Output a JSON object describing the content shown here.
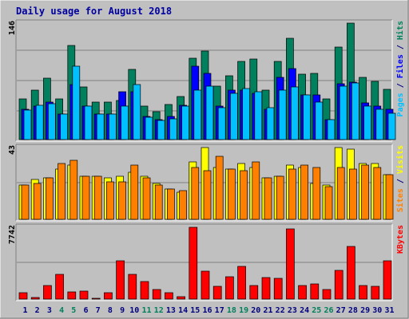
{
  "chart_data": {
    "title": "Daily usage for August 2018",
    "type": "bar",
    "categories": [
      "1",
      "2",
      "3",
      "4",
      "5",
      "6",
      "7",
      "8",
      "9",
      "10",
      "11",
      "12",
      "13",
      "14",
      "15",
      "16",
      "17",
      "18",
      "19",
      "20",
      "21",
      "22",
      "23",
      "24",
      "25",
      "26",
      "27",
      "28",
      "29",
      "30",
      "31"
    ],
    "weekend_days": [
      "4",
      "5",
      "11",
      "12",
      "18",
      "19",
      "25",
      "26"
    ],
    "colors": {
      "background": "#c0c0c0",
      "title": "#0000a0",
      "weekday_label": "#000080",
      "weekend_label": "#00805c",
      "hits": "#00805c",
      "files": "#0000ff",
      "pages": "#00c0ff",
      "visits": "#ffff00",
      "sites": "#ff8000",
      "kbytes": "#ff0000"
    },
    "panels": [
      {
        "id": "hits_files_pages",
        "ymax_label": "146",
        "legend": [
          {
            "text": "Pages",
            "color": "#00c0ff"
          },
          {
            "text": " / ",
            "color": "#000080"
          },
          {
            "text": "Files",
            "color": "#0000ff"
          },
          {
            "text": " / ",
            "color": "#000080"
          },
          {
            "text": "Hits",
            "color": "#00805c"
          }
        ],
        "series": [
          {
            "name": "Hits",
            "color": "#00805c",
            "values": [
              49,
              59,
              74,
              49,
              113,
              63,
              45,
              45,
              47,
              84,
              40,
              34,
              42,
              52,
              98,
              106,
              64,
              77,
              94,
              97,
              59,
              94,
              122,
              79,
              80,
              49,
              111,
              140,
              75,
              70,
              60
            ]
          },
          {
            "name": "Files",
            "color": "#0000ff",
            "values": [
              36,
              40,
              45,
              31,
              66,
              40,
              31,
              31,
              58,
              58,
              28,
              24,
              28,
              41,
              88,
              80,
              40,
              59,
              59,
              56,
              36,
              75,
              85,
              54,
              54,
              24,
              67,
              69,
              44,
              40,
              36
            ]
          },
          {
            "name": "Pages",
            "color": "#00c0ff",
            "values": [
              35,
              41,
              43,
              31,
              88,
              40,
              31,
              31,
              40,
              66,
              27,
              23,
              25,
              40,
              59,
              64,
              38,
              56,
              61,
              58,
              38,
              59,
              63,
              54,
              45,
              24,
              64,
              68,
              40,
              36,
              32
            ]
          }
        ]
      },
      {
        "id": "visits_sites",
        "ymax_label": "43",
        "legend": [
          {
            "text": "Sites",
            "color": "#ff8000"
          },
          {
            "text": " / ",
            "color": "#000080"
          },
          {
            "text": "Visits",
            "color": "#ffff00"
          }
        ],
        "series": [
          {
            "name": "Visits",
            "color": "#ffff00",
            "values": [
              19,
              22,
              23,
              28,
              30,
              24,
              24,
              23,
              24,
              26,
              24,
              20,
              17,
              15,
              32,
              40,
              29,
              28,
              31,
              29,
              23,
              24,
              30,
              29,
              20,
              19,
              40,
              39,
              31,
              31,
              25
            ]
          },
          {
            "name": "Sites",
            "color": "#ff8000",
            "values": [
              19,
              20,
              23,
              31,
              33,
              24,
              24,
              21,
              21,
              30,
              23,
              19,
              17,
              16,
              29,
              27,
              35,
              28,
              27,
              32,
              23,
              24,
              28,
              30,
              29,
              18,
              29,
              28,
              30,
              29,
              25
            ]
          }
        ]
      },
      {
        "id": "kbytes",
        "ymax_label": "7742",
        "legend": [
          {
            "text": "KBytes",
            "color": "#ff0000"
          }
        ],
        "series": [
          {
            "name": "KBytes",
            "color": "#ff0000",
            "values": [
              700,
              200,
              1450,
              2650,
              800,
              850,
              100,
              650,
              4100,
              2700,
              1850,
              1000,
              650,
              300,
              7742,
              3050,
              1400,
              2400,
              3550,
              1450,
              2350,
              2200,
              7600,
              1450,
              1650,
              1000,
              3100,
              5700,
              1500,
              1400,
              4100
            ]
          }
        ]
      }
    ]
  }
}
